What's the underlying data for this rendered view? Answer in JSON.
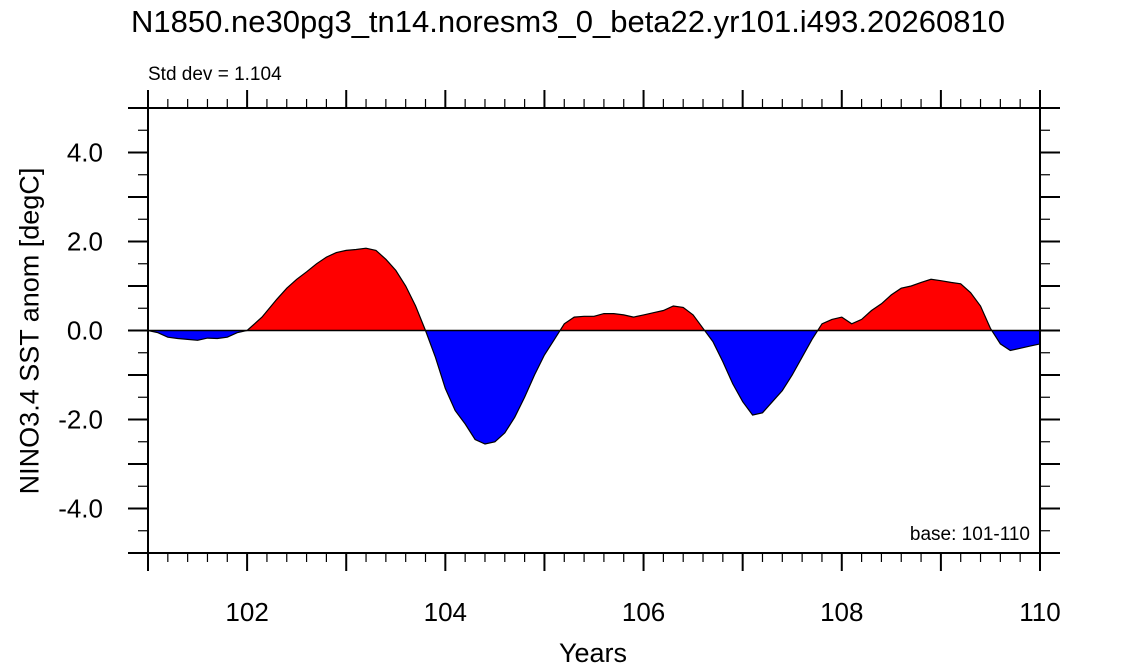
{
  "chart_data": {
    "type": "area",
    "title": "N1850.ne30pg3_tn14.noresm3_0_beta22.yr101.i493.20260810",
    "annotation_left": "Std dev = 1.104",
    "annotation_right": "base: 101-110",
    "xlabel": "Years",
    "ylabel": "NINO3.4 SST anom [degC]",
    "xlim": [
      101,
      110
    ],
    "ylim": [
      -5,
      5
    ],
    "x_ticks": [
      102,
      104,
      106,
      108,
      110
    ],
    "y_ticks": [
      4.0,
      2.0,
      0.0,
      -2.0,
      -4.0
    ],
    "y_tick_labels": [
      "4.0",
      "2.0",
      "0.0",
      "-2.0",
      "-4.0"
    ],
    "colors": {
      "positive": "#ff0000",
      "negative": "#0000ff",
      "line": "#000000"
    },
    "x": [
      101.0,
      101.1,
      101.2,
      101.3,
      101.4,
      101.5,
      101.6,
      101.7,
      101.8,
      101.9,
      102.0,
      102.15,
      102.3,
      102.4,
      102.5,
      102.6,
      102.7,
      102.8,
      102.9,
      103.0,
      103.1,
      103.2,
      103.3,
      103.4,
      103.5,
      103.6,
      103.7,
      103.8,
      103.9,
      104.0,
      104.1,
      104.2,
      104.3,
      104.4,
      104.5,
      104.6,
      104.7,
      104.8,
      104.9,
      105.0,
      105.1,
      105.2,
      105.3,
      105.4,
      105.5,
      105.6,
      105.7,
      105.8,
      105.9,
      106.0,
      106.1,
      106.2,
      106.3,
      106.4,
      106.5,
      106.6,
      106.7,
      106.8,
      106.9,
      107.0,
      107.1,
      107.2,
      107.3,
      107.4,
      107.5,
      107.6,
      107.7,
      107.8,
      107.9,
      108.0,
      108.1,
      108.2,
      108.3,
      108.4,
      108.5,
      108.6,
      108.7,
      108.8,
      108.9,
      109.0,
      109.1,
      109.2,
      109.3,
      109.4,
      109.5,
      109.6,
      109.7,
      109.8,
      109.9,
      110.0
    ],
    "y": [
      0.0,
      -0.05,
      -0.15,
      -0.18,
      -0.2,
      -0.22,
      -0.17,
      -0.18,
      -0.15,
      -0.05,
      0.0,
      0.3,
      0.7,
      0.95,
      1.15,
      1.32,
      1.5,
      1.65,
      1.75,
      1.8,
      1.82,
      1.85,
      1.8,
      1.6,
      1.35,
      1.0,
      0.55,
      0.0,
      -0.6,
      -1.3,
      -1.8,
      -2.1,
      -2.45,
      -2.55,
      -2.5,
      -2.3,
      -1.95,
      -1.5,
      -1.0,
      -0.55,
      -0.2,
      0.15,
      0.3,
      0.32,
      0.32,
      0.38,
      0.38,
      0.35,
      0.3,
      0.35,
      0.4,
      0.45,
      0.55,
      0.52,
      0.35,
      0.05,
      -0.25,
      -0.7,
      -1.2,
      -1.6,
      -1.9,
      -1.85,
      -1.6,
      -1.35,
      -1.0,
      -0.6,
      -0.2,
      0.15,
      0.25,
      0.3,
      0.15,
      0.25,
      0.45,
      0.6,
      0.8,
      0.95,
      1.0,
      1.08,
      1.15,
      1.12,
      1.08,
      1.05,
      0.85,
      0.55,
      0.05,
      -0.3,
      -0.45,
      -0.4,
      -0.35,
      -0.3
    ]
  }
}
